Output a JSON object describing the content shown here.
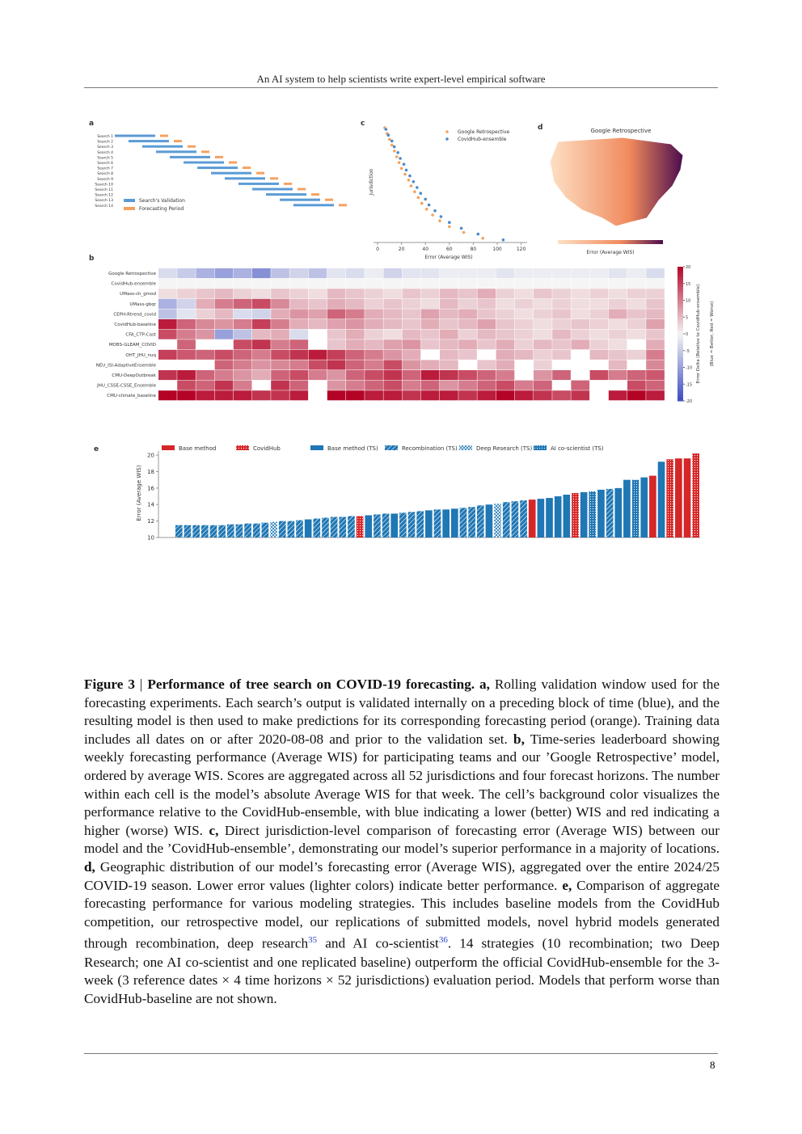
{
  "header": {
    "title": "An AI system to help scientists write expert-level empirical software"
  },
  "figure": {
    "panel_a": {
      "letter": "a",
      "rows": [
        "Search 1",
        "Search 2",
        "Search 3",
        "Search 4",
        "Search 5",
        "Search 6",
        "Search 7",
        "Search 8",
        "Search 9",
        "Search 10",
        "Search 11",
        "Search 12",
        "Search 13",
        "Search 14"
      ],
      "legend": [
        "Search's Validation",
        "Forecasting Period"
      ],
      "colors": [
        "#5b9bd5",
        "#f4a261"
      ]
    },
    "panel_c": {
      "letter": "c",
      "type": "scatter",
      "ylabel": "Jurisdiction",
      "xlabel": "Error (Average WIS)",
      "xlim": [
        -5,
        130
      ],
      "xticks": [
        0,
        20,
        40,
        60,
        80,
        100,
        120
      ],
      "series": [
        {
          "name": "Google Retrospective",
          "color": "#f4a261",
          "values": [
            6,
            8,
            10,
            12,
            14,
            16,
            18,
            20,
            23,
            26,
            28,
            31,
            34,
            37,
            41,
            46,
            52,
            60,
            72,
            88
          ]
        },
        {
          "name": "CovidHub-ensemble",
          "color": "#4a8bc9",
          "values": [
            7,
            9,
            12,
            14,
            17,
            19,
            22,
            24,
            27,
            30,
            33,
            36,
            40,
            43,
            48,
            53,
            60,
            70,
            84,
            105
          ]
        }
      ]
    },
    "panel_d": {
      "letter": "d",
      "title": "Google Retrospective",
      "colorbar_label": "Error (Average WIS)"
    },
    "panel_b": {
      "letter": "b",
      "type": "heatmap",
      "rows": [
        "Google Retrospective",
        "CovidHub-ensemble",
        "UMass-ch_gmod",
        "UMass-gbqr",
        "CEPH-Rtrend_covid",
        "CovidHub-baseline",
        "CFA_CTP-Cast",
        "MOBS-GLEAM_COVID",
        "OHT_JHU_nuq",
        "NEU_ISI-AdaptiveEnsemble",
        "CMU-DeepOutbreak",
        "JHU_CSSE-CSSE_Ensemble",
        "CMU-climate_baseline"
      ],
      "colorbar_label": "Error Delta (Relative to CovidHub-ensemble)",
      "colorbar_sublabel": "(Blue = Better, Red = Worse)",
      "clim": [
        -20,
        20
      ],
      "cticks": [
        20,
        15,
        10,
        5,
        0,
        -5,
        -10,
        -15,
        -20
      ],
      "values": [
        [
          -3,
          -5,
          -8,
          -10,
          -8,
          -12,
          -6,
          -4,
          -6,
          -2,
          -3,
          -1,
          -4,
          -2,
          -2,
          -1,
          -1,
          -1,
          -2,
          -1,
          -1,
          -1,
          -1,
          -1,
          -2,
          -1,
          -3
        ],
        [
          0,
          0,
          0,
          0,
          0,
          0,
          0,
          0,
          0,
          0,
          0,
          0,
          0,
          0,
          0,
          0,
          0,
          0,
          0,
          0,
          0,
          0,
          0,
          0,
          0,
          0,
          0
        ],
        [
          2,
          3,
          4,
          5,
          3,
          2,
          4,
          3,
          2,
          5,
          4,
          3,
          2,
          4,
          3,
          5,
          4,
          6,
          3,
          2,
          4,
          3,
          2,
          3,
          2,
          3,
          3
        ],
        [
          -8,
          -4,
          6,
          10,
          12,
          14,
          9,
          5,
          4,
          6,
          5,
          3,
          4,
          3,
          2,
          5,
          3,
          4,
          2,
          3,
          2,
          3,
          2,
          2,
          3,
          2,
          4
        ],
        [
          -6,
          -2,
          3,
          5,
          -3,
          -4,
          6,
          8,
          7,
          12,
          10,
          6,
          5,
          4,
          7,
          5,
          6,
          4,
          3,
          2,
          3,
          4,
          2,
          3,
          6,
          4,
          5
        ],
        [
          18,
          12,
          9,
          8,
          10,
          15,
          10,
          6,
          5,
          7,
          8,
          6,
          5,
          4,
          6,
          4,
          5,
          7,
          4,
          3,
          2,
          3,
          4,
          3,
          2,
          3,
          7
        ],
        [
          14,
          10,
          8,
          -10,
          -6,
          5,
          6,
          -3,
          null,
          4,
          6,
          3,
          2,
          5,
          4,
          6,
          3,
          5,
          4,
          3,
          2,
          5,
          3,
          2,
          3,
          2,
          4
        ],
        [
          null,
          12,
          null,
          null,
          14,
          16,
          10,
          12,
          null,
          4,
          6,
          5,
          7,
          8,
          4,
          5,
          6,
          4,
          6,
          3,
          5,
          4,
          6,
          3,
          2,
          null,
          6
        ],
        [
          15,
          13,
          12,
          14,
          12,
          10,
          14,
          16,
          18,
          15,
          12,
          10,
          8,
          6,
          null,
          5,
          4,
          null,
          6,
          5,
          3,
          4,
          null,
          5,
          4,
          3,
          10
        ],
        [
          null,
          null,
          null,
          12,
          10,
          8,
          9,
          10,
          14,
          16,
          12,
          10,
          14,
          8,
          6,
          5,
          null,
          4,
          6,
          null,
          3,
          null,
          null,
          null,
          5,
          null,
          9
        ],
        [
          16,
          18,
          12,
          10,
          8,
          6,
          12,
          14,
          10,
          8,
          12,
          14,
          16,
          12,
          18,
          16,
          14,
          12,
          10,
          null,
          8,
          12,
          null,
          14,
          10,
          12,
          13
        ],
        [
          null,
          14,
          12,
          16,
          10,
          null,
          16,
          12,
          null,
          8,
          10,
          12,
          14,
          10,
          12,
          8,
          10,
          12,
          14,
          10,
          12,
          null,
          12,
          null,
          null,
          14,
          12
        ],
        [
          20,
          20,
          18,
          18,
          18,
          16,
          16,
          18,
          null,
          20,
          20,
          18,
          18,
          16,
          18,
          18,
          16,
          18,
          20,
          18,
          16,
          14,
          16,
          null,
          18,
          20,
          18
        ]
      ]
    },
    "panel_e": {
      "letter": "e",
      "type": "bar",
      "ylabel": "Error (Average WIS)",
      "ylim": [
        10,
        20.5
      ],
      "yticks": [
        10,
        12,
        14,
        16,
        18,
        20
      ],
      "legend": [
        {
          "name": "Base method",
          "color": "#d62728",
          "pattern": "solid"
        },
        {
          "name": "CovidHub",
          "color": "#d62728",
          "pattern": "dots"
        },
        {
          "name": "Base method (TS)",
          "color": "#1f77b4",
          "pattern": "solid"
        },
        {
          "name": "Recombination (TS)",
          "color": "#1f77b4",
          "pattern": "hatch"
        },
        {
          "name": "Deep Research (TS)",
          "color": "#1f77b4",
          "pattern": "cross"
        },
        {
          "name": "AI co-scientist (TS)",
          "color": "#1f77b4",
          "pattern": "dots"
        }
      ],
      "values": [
        11.5,
        11.5,
        11.5,
        11.5,
        11.5,
        11.5,
        11.6,
        11.6,
        11.7,
        11.7,
        11.8,
        11.9,
        12.0,
        12.0,
        12.1,
        12.2,
        12.3,
        12.4,
        12.5,
        12.5,
        12.6,
        12.6,
        12.7,
        12.8,
        12.9,
        12.9,
        13.0,
        13.1,
        13.2,
        13.3,
        13.4,
        13.4,
        13.5,
        13.6,
        13.7,
        13.9,
        14.0,
        14.1,
        14.3,
        14.4,
        14.5,
        14.6,
        14.7,
        14.8,
        15.0,
        15.2,
        15.4,
        15.5,
        15.6,
        15.8,
        15.9,
        16.0,
        17.0,
        17.0,
        17.3,
        17.5,
        19.2,
        19.5,
        19.6,
        19.6,
        20.2
      ],
      "kinds": [
        3,
        3,
        3,
        3,
        3,
        3,
        3,
        3,
        3,
        3,
        3,
        4,
        3,
        3,
        3,
        2,
        3,
        3,
        3,
        3,
        3,
        1,
        2,
        3,
        3,
        2,
        3,
        3,
        3,
        2,
        3,
        2,
        2,
        3,
        3,
        3,
        2,
        4,
        3,
        3,
        3,
        0,
        2,
        2,
        2,
        2,
        1,
        2,
        5,
        2,
        3,
        2,
        2,
        5,
        2,
        0,
        2,
        1,
        0,
        0,
        1
      ]
    }
  },
  "caption": [
    {
      "text": "Figure 3",
      "b": true
    },
    {
      "text": " | "
    },
    {
      "text": "Performance of tree search on COVID-19 forecasting. a,",
      "b": true
    },
    {
      "text": " Rolling validation window used for the forecasting experiments. Each search’s output is validated internally on a preceding block of time (blue), and the resulting model is then used to make predictions for its corresponding forecasting period (orange). Training data includes all dates on or after 2020-08-08 and prior to the validation set. "
    },
    {
      "text": "b,",
      "b": true
    },
    {
      "text": " Time-series leaderboard showing weekly forecasting performance (Average WIS) for participating teams and our ’Google Retrospective’ model, ordered by average WIS. Scores are aggregated across all 52 jurisdictions and four forecast horizons. The number within each cell is the model’s absolute Average WIS for that week. The cell’s background color visualizes the performance relative to the CovidHub-ensemble, with blue indicating a lower (better) WIS and red indicating a higher (worse) WIS. "
    },
    {
      "text": "c,",
      "b": true
    },
    {
      "text": " Direct jurisdiction-level comparison of forecasting error (Average WIS) between our model and the ’CovidHub-ensemble’, demonstrating our model’s superior performance in a majority of locations. "
    },
    {
      "text": "d,",
      "b": true
    },
    {
      "text": " Geographic distribution of our model’s forecasting error (Average WIS), aggregated over the entire 2024/25 COVID-19 season. Lower error values (lighter colors) indicate better performance. "
    },
    {
      "text": "e,",
      "b": true
    },
    {
      "text": " Comparison of aggregate forecasting performance for various modeling strategies. This includes baseline models from the CovidHub competition, our retrospective model, our replications of submitted models, novel hybrid models generated through recombination, deep research"
    },
    {
      "text": "35",
      "sup": true
    },
    {
      "text": " and AI co-scientist"
    },
    {
      "text": "36",
      "sup": true
    },
    {
      "text": ". 14 strategies (10 recombination; two Deep Research; one AI co-scientist and one replicated baseline) outperform the official CovidHub-ensemble for the 3-week (3 reference dates × 4 time horizons × 52 jurisdictions) evaluation period. Models that perform worse than CovidHub-baseline are not shown."
    }
  ],
  "footer": {
    "page": "8"
  }
}
